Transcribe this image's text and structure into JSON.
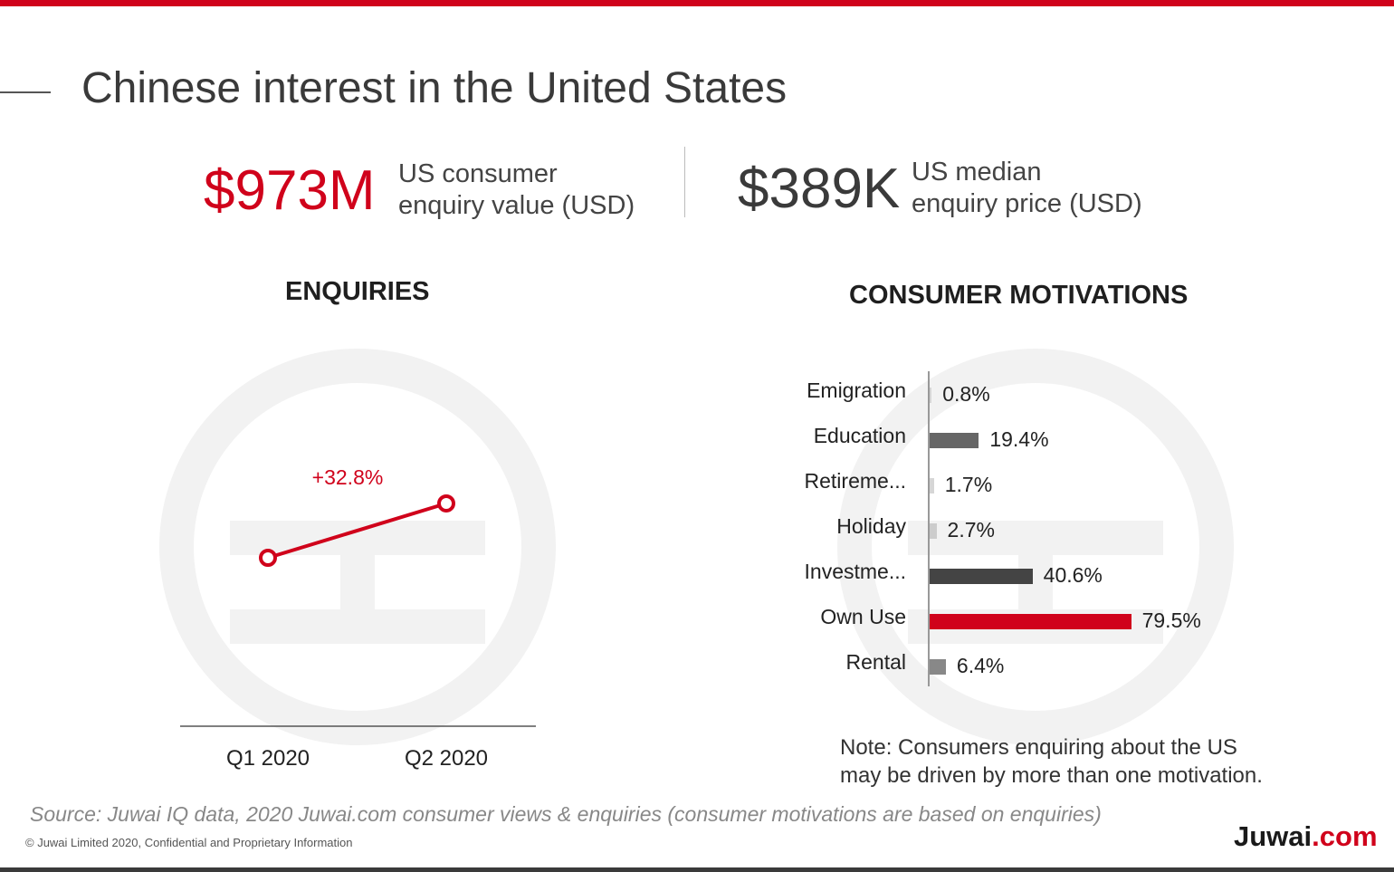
{
  "page_title": "Chinese interest in the United States",
  "stats": [
    {
      "value": "$973M",
      "label_line1": "US consumer",
      "label_line2": "enquiry value (USD)",
      "color": "#d0021b"
    },
    {
      "value": "$389K",
      "label_line1": "US median",
      "label_line2": "enquiry price (USD)",
      "color": "#3a3a3a"
    }
  ],
  "chart_data": [
    {
      "type": "line",
      "title": "ENQUIRIES",
      "categories": [
        "Q1 2020",
        "Q2 2020"
      ],
      "series": [
        {
          "values": [
            100,
            132.8
          ]
        }
      ],
      "annotation": "+32.8%",
      "color": "#d0021b"
    },
    {
      "type": "bar",
      "orientation": "horizontal",
      "title": "CONSUMER MOTIVATIONS",
      "categories": [
        "Emigration",
        "Education",
        "Retireme...",
        "Holiday",
        "Investme...",
        "Own Use",
        "Rental"
      ],
      "values": [
        0.8,
        19.4,
        1.7,
        2.7,
        40.6,
        79.5,
        6.4
      ],
      "value_labels": [
        "0.8%",
        "19.4%",
        "1.7%",
        "2.7%",
        "40.6%",
        "79.5%",
        "6.4%"
      ],
      "colors": [
        "#d6d6d6",
        "#666666",
        "#d6d6d6",
        "#cccccc",
        "#444444",
        "#d0021b",
        "#888888"
      ],
      "xlim": [
        0,
        100
      ]
    }
  ],
  "note_line1": "Note: Consumers enquiring about the US",
  "note_line2": "may be driven by more than one motivation.",
  "source": "Source: Juwai IQ data, 2020 Juwai.com consumer views & enquiries (consumer motivations are based on enquiries)",
  "copyright": "© Juwai Limited 2020, Confidential and Proprietary Information",
  "logo": {
    "name": "Juwai",
    "suffix": ".com"
  }
}
